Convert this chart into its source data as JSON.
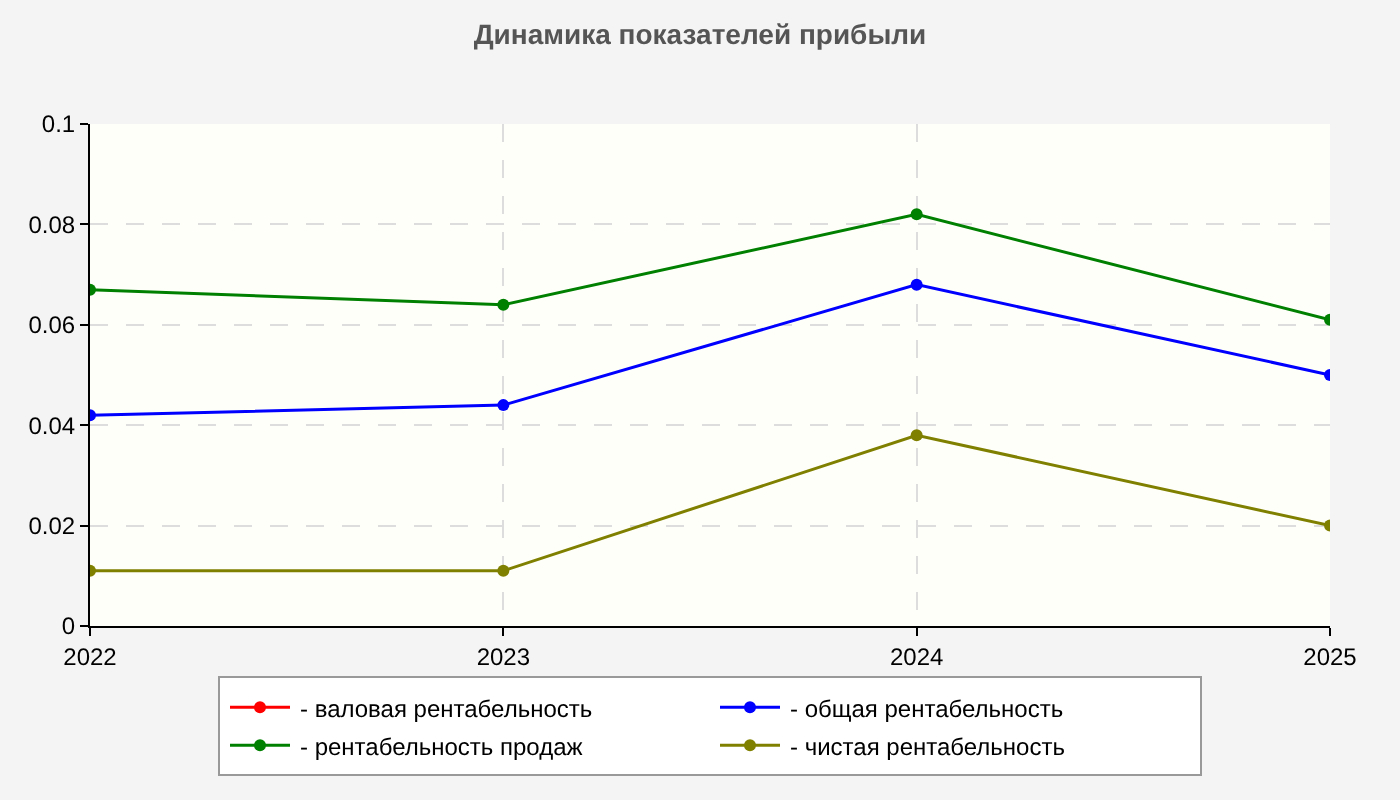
{
  "chart_data": {
    "type": "line",
    "title": "Динамика показателей прибыли",
    "x": [
      2022,
      2023,
      2024,
      2025
    ],
    "series": [
      {
        "name": "- валовая рентабельность",
        "color": "#ff0000",
        "values": [
          null,
          null,
          null,
          null
        ]
      },
      {
        "name": "- общая рентабельность",
        "color": "#0000ff",
        "values": [
          0.042,
          0.044,
          0.068,
          0.05
        ]
      },
      {
        "name": "- рентабельность продаж",
        "color": "#008000",
        "values": [
          0.067,
          0.064,
          0.082,
          0.061
        ]
      },
      {
        "name": "- чистая рентабельность",
        "color": "#808000",
        "values": [
          0.011,
          0.011,
          0.038,
          0.02
        ]
      }
    ],
    "xlim": [
      2022,
      2025
    ],
    "xticks": [
      2022,
      2023,
      2024,
      2025
    ],
    "ylim": [
      0,
      0.1
    ],
    "yticks": [
      0,
      0.02,
      0.04,
      0.06,
      0.08,
      0.1
    ],
    "grid": true,
    "legend": "bottom",
    "marker": "circle",
    "line_style": "solid"
  }
}
